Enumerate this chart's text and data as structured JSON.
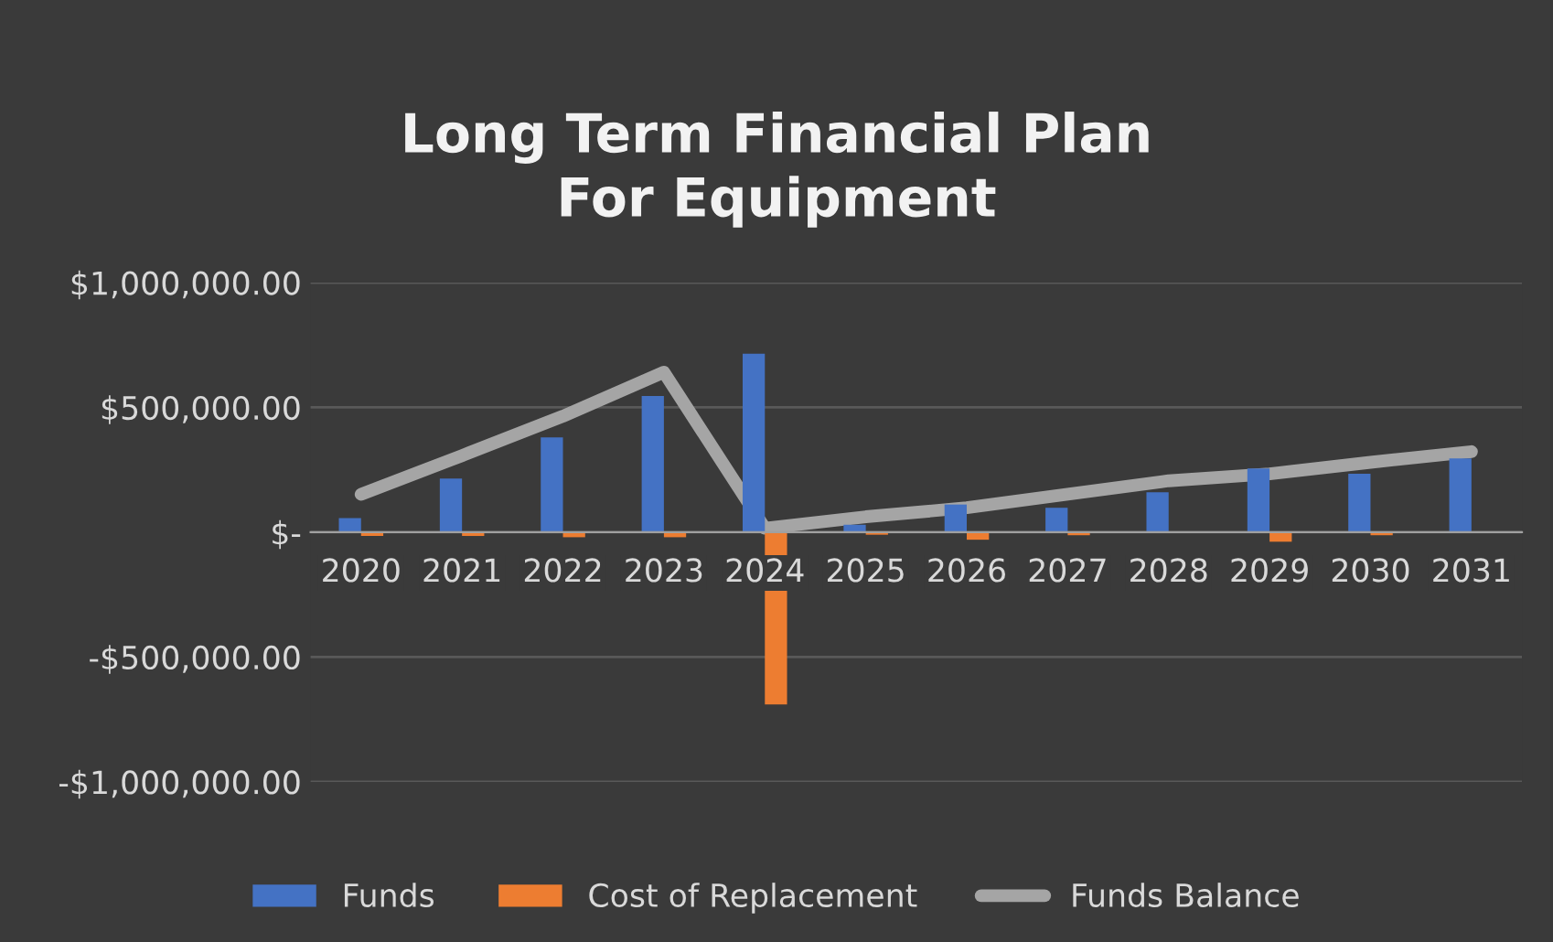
{
  "chart_data": {
    "type": "bar",
    "title": "Long Term Financial Plan\nFor Equipment",
    "categories": [
      "2020",
      "2021",
      "2022",
      "2023",
      "2024",
      "2025",
      "2026",
      "2027",
      "2028",
      "2029",
      "2030",
      "2031"
    ],
    "series": [
      {
        "name": "Funds",
        "color": "#4472c4",
        "values": [
          57000,
          215000,
          380000,
          546000,
          715000,
          30000,
          111000,
          98000,
          160000,
          255000,
          234000,
          296000
        ]
      },
      {
        "name": "Cost of Replacement",
        "color": "#ed7d31",
        "values": [
          -15000,
          -15000,
          -20000,
          -20000,
          -690000,
          -10000,
          -30000,
          -12000,
          null,
          -38000,
          -12000,
          null
        ]
      },
      {
        "name": "Funds Balance",
        "type": "line",
        "color": "#a5a5a5",
        "values": [
          152000,
          307000,
          465000,
          641000,
          16000,
          62000,
          98000,
          152000,
          206000,
          234000,
          280000,
          323000
        ]
      }
    ],
    "ylim": [
      -1000000,
      1000000
    ],
    "yticks": [
      {
        "value": -1000000,
        "label": "-$1,000,000.00"
      },
      {
        "value": -500000,
        "label": "-$500,000.00"
      },
      {
        "value": 0,
        "label": "$-"
      },
      {
        "value": 500000,
        "label": "$500,000.00"
      },
      {
        "value": 1000000,
        "label": "$1,000,000.00"
      }
    ],
    "grid": "y",
    "legend": "bottom",
    "marker": "none",
    "line_style": "solid"
  }
}
